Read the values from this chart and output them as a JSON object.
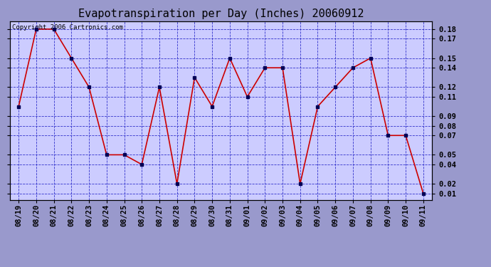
{
  "title": "Evapotranspiration per Day (Inches) 20060912",
  "copyright": "Copyright 2006 Cartronics.com",
  "x_labels": [
    "08/19",
    "08/20",
    "08/21",
    "08/22",
    "08/23",
    "08/24",
    "08/25",
    "08/26",
    "08/27",
    "08/28",
    "08/29",
    "08/30",
    "08/31",
    "09/01",
    "09/02",
    "09/03",
    "09/04",
    "09/05",
    "09/06",
    "09/07",
    "09/08",
    "09/09",
    "09/10",
    "09/11"
  ],
  "y_values": [
    0.1,
    0.18,
    0.18,
    0.15,
    0.12,
    0.05,
    0.05,
    0.04,
    0.12,
    0.02,
    0.13,
    0.1,
    0.15,
    0.11,
    0.14,
    0.14,
    0.02,
    0.1,
    0.12,
    0.14,
    0.15,
    0.07,
    0.07,
    0.01
  ],
  "line_color": "#cc0000",
  "marker_color": "#000055",
  "bg_color": "#9999cc",
  "plot_bg_color": "#ccccff",
  "grid_color": "#3333cc",
  "yticks": [
    0.01,
    0.02,
    0.04,
    0.05,
    0.07,
    0.08,
    0.09,
    0.11,
    0.12,
    0.14,
    0.15,
    0.17,
    0.18
  ],
  "ylim": [
    0.003,
    0.188
  ],
  "title_fontsize": 11,
  "copyright_fontsize": 6.5,
  "tick_fontsize": 7.5,
  "y_tick_fontsize": 7.5
}
